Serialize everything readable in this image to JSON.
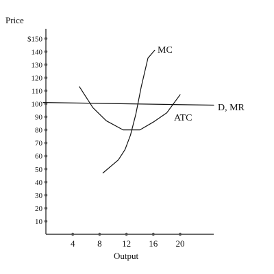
{
  "chart_data": {
    "type": "line",
    "ylabel": "Price",
    "xlabel": "Output",
    "xlim": [
      0,
      24
    ],
    "ylim": [
      0,
      160
    ],
    "x_ticks": [
      {
        "value": 4,
        "label": "4"
      },
      {
        "value": 8,
        "label": "8"
      },
      {
        "value": 12,
        "label": "12"
      },
      {
        "value": 16,
        "label": "16"
      },
      {
        "value": 20,
        "label": "20"
      }
    ],
    "y_ticks": [
      {
        "value": 150,
        "label": "$150"
      },
      {
        "value": 140,
        "label": "140"
      },
      {
        "value": 130,
        "label": "130"
      },
      {
        "value": 120,
        "label": "120"
      },
      {
        "value": 110,
        "label": "110"
      },
      {
        "value": 100,
        "label": "100"
      },
      {
        "value": 90,
        "label": "90"
      },
      {
        "value": 80,
        "label": "80"
      },
      {
        "value": 70,
        "label": "70"
      },
      {
        "value": 60,
        "label": "60"
      },
      {
        "value": 50,
        "label": "50"
      },
      {
        "value": 40,
        "label": "40"
      },
      {
        "value": 30,
        "label": "30"
      },
      {
        "value": 20,
        "label": "20"
      },
      {
        "value": 10,
        "label": "10"
      }
    ],
    "grid": false,
    "series": [
      {
        "name": "MC",
        "x": [
          8.5,
          10.8,
          11.8,
          12.6,
          13.4,
          14.2,
          15.2,
          16.2
        ],
        "y": [
          47,
          57,
          65,
          76,
          92,
          113,
          135,
          141
        ]
      },
      {
        "name": "ATC",
        "x": [
          5,
          7,
          9,
          11.5,
          14,
          16,
          18,
          20
        ],
        "y": [
          113,
          97,
          87,
          80,
          80,
          86,
          93,
          107
        ]
      },
      {
        "name": "D, MR",
        "x": [
          0,
          25
        ],
        "y": [
          101,
          99
        ]
      }
    ]
  }
}
